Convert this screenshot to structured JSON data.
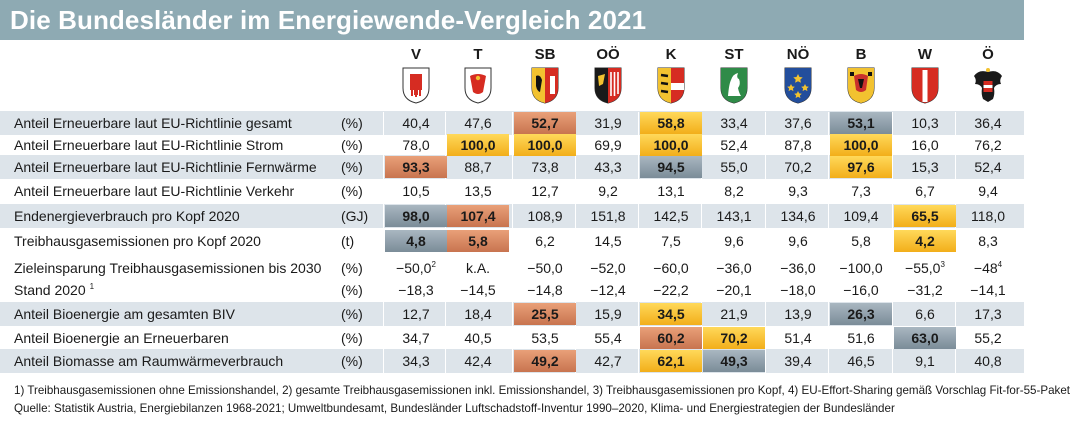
{
  "title": "Die Bundesländer im Energiewende-Vergleich 2021",
  "columns": [
    {
      "label": "V",
      "flag": "vorarlberg-coat-of-arms-icon"
    },
    {
      "label": "T",
      "flag": "tirol-coat-of-arms-icon"
    },
    {
      "label": "SB",
      "flag": "salzburg-coat-of-arms-icon"
    },
    {
      "label": "OÖ",
      "flag": "oberoesterreich-coat-of-arms-icon"
    },
    {
      "label": "K",
      "flag": "kaernten-coat-of-arms-icon"
    },
    {
      "label": "ST",
      "flag": "steiermark-coat-of-arms-icon"
    },
    {
      "label": "NÖ",
      "flag": "niederoesterreich-coat-of-arms-icon"
    },
    {
      "label": "B",
      "flag": "burgenland-coat-of-arms-icon"
    },
    {
      "label": "W",
      "flag": "wien-coat-of-arms-icon"
    },
    {
      "label": "Ö",
      "flag": "oesterreich-coat-of-arms-icon"
    }
  ],
  "highlight_colors": {
    "orange": "#d98a63",
    "yellow": "#f8c338",
    "grey": "#94a4af"
  },
  "rows": [
    {
      "label": "Anteil Erneuerbare laut EU-Richtlinie gesamt",
      "unit": "(%)",
      "values": [
        "40,4",
        "47,6",
        "52,7",
        "31,9",
        "58,8",
        "33,4",
        "37,6",
        "53,1",
        "10,3",
        "36,4"
      ],
      "highlights": [
        "",
        "",
        "orange",
        "",
        "yellow",
        "",
        "",
        "grey",
        "",
        ""
      ]
    },
    {
      "label": "Anteil Erneuerbare laut EU-Richtlinie Strom",
      "unit": "(%)",
      "values": [
        "78,0",
        "100,0",
        "100,0",
        "69,9",
        "100,0",
        "52,4",
        "87,8",
        "100,0",
        "16,0",
        "76,2"
      ],
      "highlights": [
        "",
        "yellow",
        "yellow",
        "",
        "yellow",
        "",
        "",
        "yellow",
        "",
        ""
      ]
    },
    {
      "label": "Anteil Erneuerbare laut EU-Richtlinie Fernwärme",
      "unit": "(%)",
      "values": [
        "93,3",
        "88,7",
        "73,8",
        "43,3",
        "94,5",
        "55,0",
        "70,2",
        "97,6",
        "15,3",
        "52,4"
      ],
      "highlights": [
        "orange",
        "",
        "",
        "",
        "grey",
        "",
        "",
        "yellow",
        "",
        ""
      ]
    },
    {
      "label": "Anteil Erneuerbare laut EU-Richtlinie Verkehr",
      "unit": "(%)",
      "values": [
        "10,5",
        "13,5",
        "12,7",
        "9,2",
        "13,1",
        "8,2",
        "9,3",
        "7,3",
        "6,7",
        "9,4"
      ],
      "highlights": [
        "",
        "",
        "",
        "",
        "",
        "",
        "",
        "",
        "",
        ""
      ]
    },
    {
      "label": "Endenergieverbrauch pro Kopf 2020",
      "unit": "(GJ)",
      "values": [
        "98,0",
        "107,4",
        "108,9",
        "151,8",
        "142,5",
        "143,1",
        "134,6",
        "109,4",
        "65,5",
        "118,0"
      ],
      "highlights": [
        "grey",
        "orange",
        "",
        "",
        "",
        "",
        "",
        "",
        "yellow",
        ""
      ]
    },
    {
      "label": "Treibhausgasemissionen pro Kopf 2020",
      "unit": "(t)",
      "values": [
        "4,8",
        "5,8",
        "6,2",
        "14,5",
        "7,5",
        "9,6",
        "9,6",
        "5,8",
        "4,2",
        "8,3"
      ],
      "highlights": [
        "grey",
        "orange",
        "",
        "",
        "",
        "",
        "",
        "",
        "yellow",
        ""
      ]
    },
    {
      "label": "Zieleinsparung Treibhausgasemissionen bis 2030",
      "unit": "(%)",
      "values": [
        "−50,0",
        "k.A.",
        "−50,0",
        "−52,0",
        "−60,0",
        "−36,0",
        "−36,0",
        "−100,0",
        "−55,0",
        "−48"
      ],
      "sups": [
        "2",
        "",
        "",
        "",
        "",
        "",
        "",
        "",
        "3",
        "4"
      ],
      "highlights": [
        "",
        "",
        "",
        "",
        "",
        "",
        "",
        "",
        "",
        ""
      ]
    },
    {
      "label": "Stand 2020",
      "label_sup": "1",
      "unit": "(%)",
      "values": [
        "−18,3",
        "−14,5",
        "−14,8",
        "−12,4",
        "−22,2",
        "−20,1",
        "−18,0",
        "−16,0",
        "−31,2",
        "−14,1"
      ],
      "highlights": [
        "",
        "",
        "",
        "",
        "",
        "",
        "",
        "",
        "",
        ""
      ]
    },
    {
      "label": "Anteil Bioenergie am gesamten BIV",
      "unit": "(%)",
      "values": [
        "12,7",
        "18,4",
        "25,5",
        "15,9",
        "34,5",
        "21,9",
        "13,9",
        "26,3",
        "6,6",
        "17,3"
      ],
      "highlights": [
        "",
        "",
        "orange",
        "",
        "yellow",
        "",
        "",
        "grey",
        "",
        ""
      ]
    },
    {
      "label": "Anteil Bioenergie an Erneuerbaren",
      "unit": "(%)",
      "values": [
        "34,7",
        "40,5",
        "53,5",
        "55,4",
        "60,2",
        "70,2",
        "51,4",
        "51,6",
        "63,0",
        "55,2"
      ],
      "highlights": [
        "",
        "",
        "",
        "",
        "orange",
        "yellow",
        "",
        "",
        "grey",
        ""
      ]
    },
    {
      "label": "Anteil Biomasse am Raumwärmeverbrauch",
      "unit": "(%)",
      "values": [
        "34,3",
        "42,4",
        "49,2",
        "42,7",
        "62,1",
        "49,3",
        "39,4",
        "46,5",
        "9,1",
        "40,8"
      ],
      "highlights": [
        "",
        "",
        "orange",
        "",
        "yellow",
        "grey",
        "",
        "",
        "",
        ""
      ]
    }
  ],
  "footnotes": "1) Treibhausgasemissionen ohne Emissionshandel, 2) gesamte Treibhausgasemissionen inkl. Emissionshandel, 3) Treibhausgasemissionen pro Kopf, 4) EU-Effort-Sharing gemäß Vorschlag Fit-for-55-Paket",
  "source": "Quelle: Statistik Austria, Energiebilanzen 1968-2021; Umweltbundesamt, Bundesländer Luftschadstoff-Inventur 1990–2020, Klima- und Energiestrategien der Bundesländer"
}
